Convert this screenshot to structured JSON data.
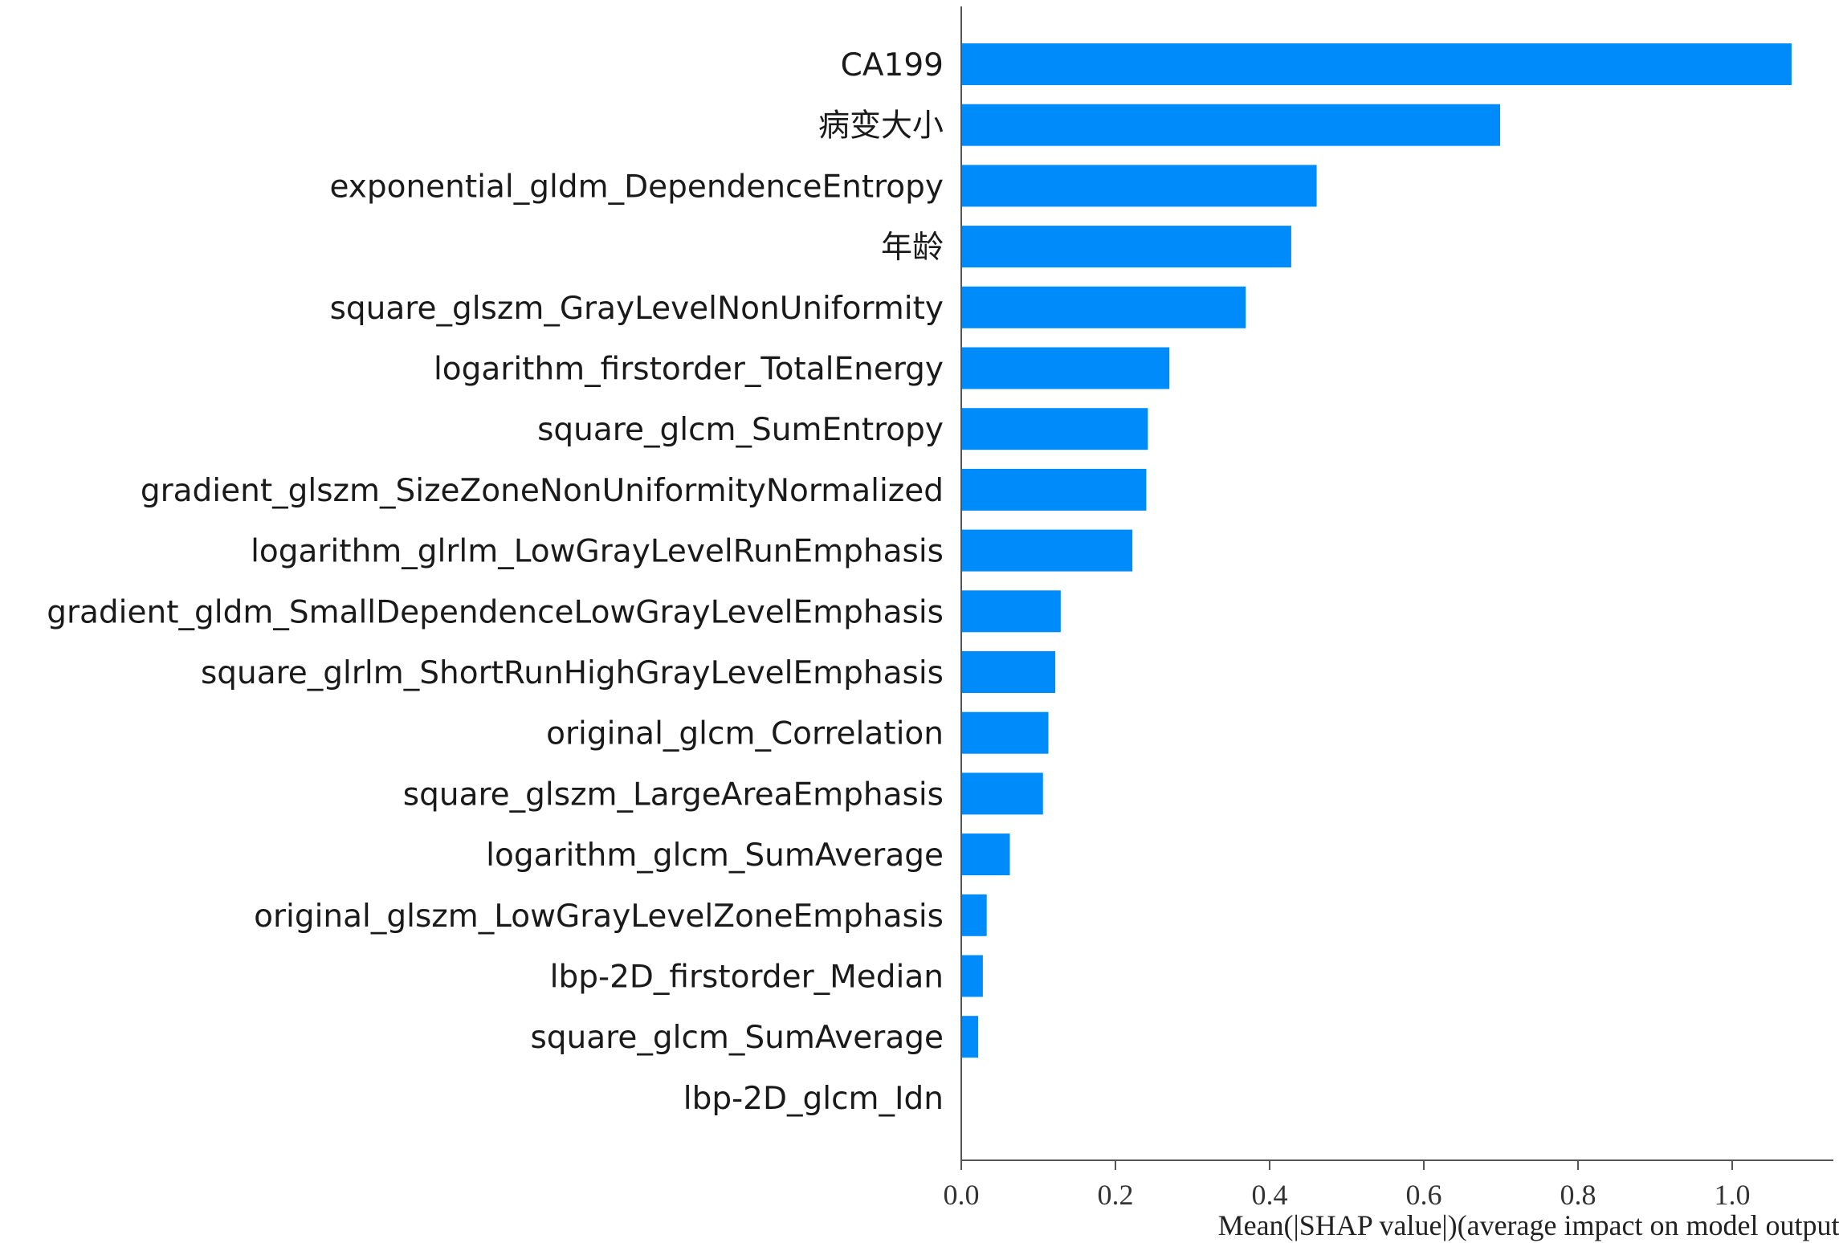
{
  "chart_data": {
    "type": "bar",
    "orientation": "horizontal",
    "categories": [
      "CA199",
      "病变大小",
      "exponential_gldm_DependenceEntropy",
      "年龄",
      "square_glszm_GrayLevelNonUniformity",
      "logarithm_firstorder_TotalEnergy",
      "square_glcm_SumEntropy",
      "gradient_glszm_SizeZoneNonUniformityNormalized",
      "logarithm_glrlm_LowGrayLevelRunEmphasis",
      "gradient_gldm_SmallDependenceLowGrayLevelEmphasis",
      "square_glrlm_ShortRunHighGrayLevelEmphasis",
      "original_glcm_Correlation",
      "square_glszm_LargeAreaEmphasis",
      "logarithm_glcm_SumAverage",
      "original_glszm_LowGrayLevelZoneEmphasis",
      "lbp-2D_firstorder_Median",
      "square_glcm_SumAverage",
      "lbp-2D_glcm_Idn"
    ],
    "values": [
      1.077,
      0.699,
      0.461,
      0.428,
      0.369,
      0.27,
      0.242,
      0.24,
      0.222,
      0.129,
      0.122,
      0.113,
      0.106,
      0.063,
      0.033,
      0.028,
      0.022,
      0.0
    ],
    "title": "",
    "xlabel": "Mean(|SHAP value|)(average impact on model output magnitude)",
    "ylabel": "",
    "xlim": [
      0,
      1.13
    ],
    "xticks": [
      0.0,
      0.2,
      0.4,
      0.6,
      0.8,
      1.0
    ],
    "xtick_labels": [
      "0.0",
      "0.2",
      "0.4",
      "0.6",
      "0.8",
      "1.0"
    ],
    "grid": false,
    "bar_color": "#008bfb"
  }
}
